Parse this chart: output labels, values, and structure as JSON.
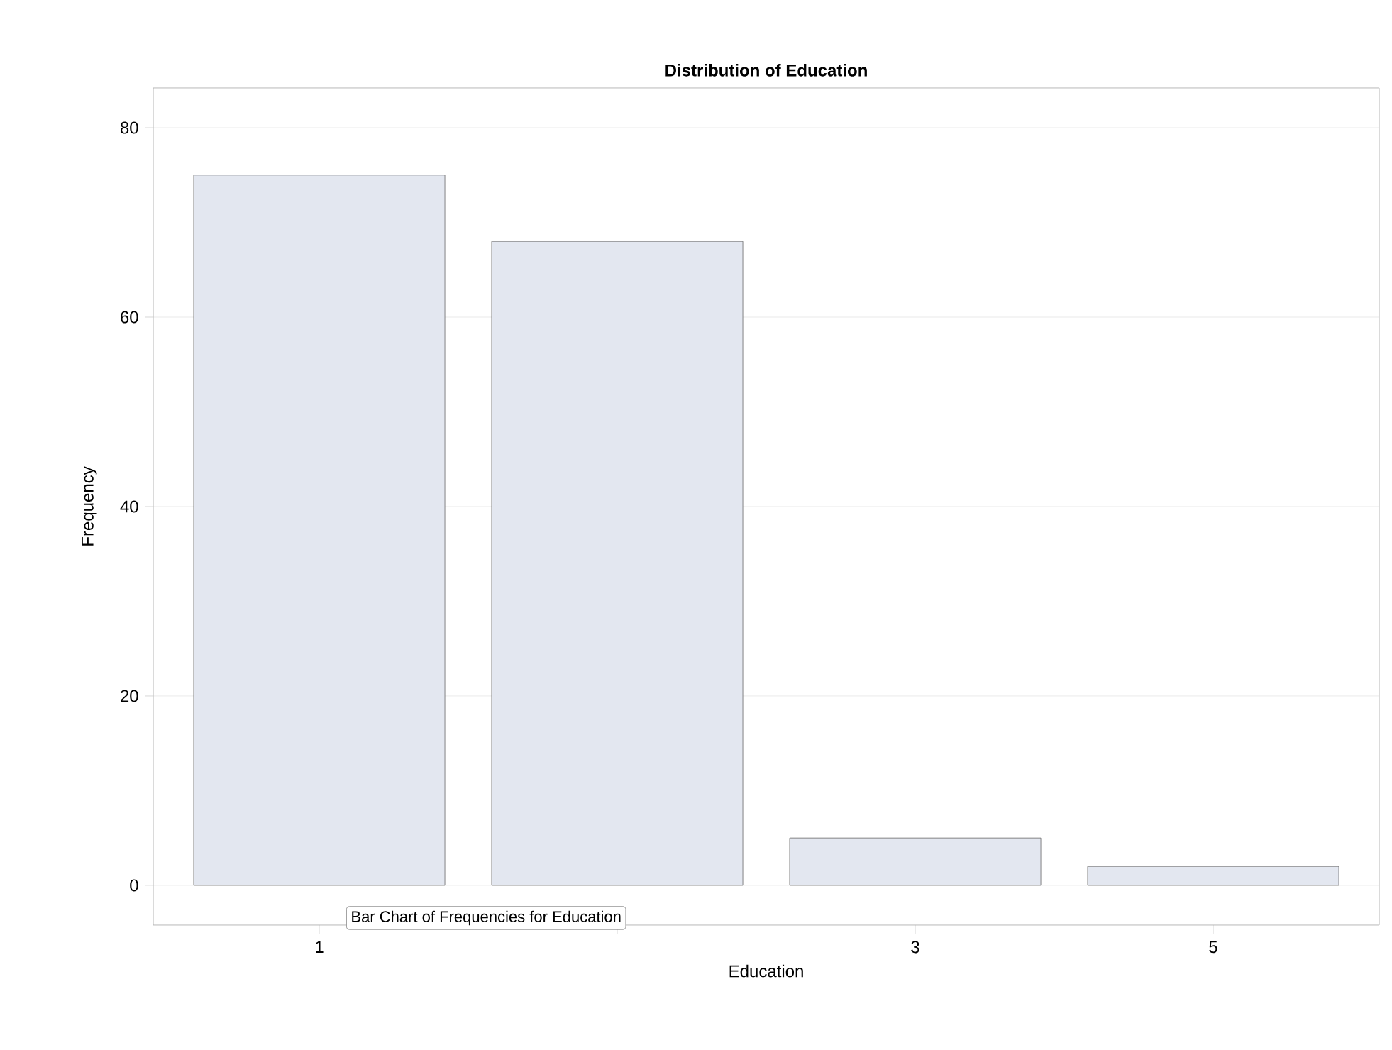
{
  "chart_data": {
    "type": "bar",
    "title": "Distribution of Education",
    "xlabel": "Education",
    "ylabel": "Frequency",
    "categories": [
      "1",
      null,
      "3",
      "5"
    ],
    "values": [
      75,
      68,
      5,
      2
    ],
    "color": "#e3e7f0",
    "ylim": [
      -4.2,
      84.2
    ],
    "yticks": [
      0,
      20,
      40,
      60,
      80
    ],
    "grid": "y",
    "annotations": [
      "Bar Chart of Frequencies for Education"
    ]
  }
}
